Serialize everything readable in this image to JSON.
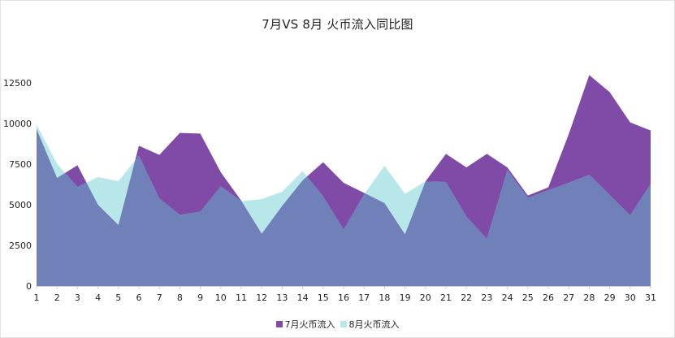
{
  "colors": {
    "july": "#7F4BA6",
    "august": "#B8E7EA",
    "overlap": "#7080B9",
    "axis": "#333333"
  },
  "chart_data": {
    "type": "area",
    "title": "7月VS 8月 火币流入同比图",
    "xlabel": "",
    "ylabel": "",
    "ylim": [
      0,
      15000
    ],
    "yticks": [
      0,
      2500,
      5000,
      7500,
      10000,
      12500
    ],
    "grid": false,
    "legend_position": "bottom",
    "categories": [
      "1",
      "2",
      "3",
      "4",
      "5",
      "6",
      "7",
      "8",
      "9",
      "10",
      "11",
      "12",
      "13",
      "14",
      "15",
      "16",
      "17",
      "18",
      "19",
      "20",
      "21",
      "22",
      "23",
      "24",
      "25",
      "26",
      "27",
      "28",
      "29",
      "30",
      "31"
    ],
    "series": [
      {
        "name": "7月火币流入",
        "values": [
          9650,
          6650,
          7430,
          5000,
          3750,
          8630,
          8070,
          9420,
          9380,
          7000,
          5250,
          3220,
          4930,
          6500,
          7620,
          6350,
          5730,
          5100,
          3180,
          6430,
          8130,
          7300,
          8130,
          7300,
          5570,
          6070,
          9350,
          12980,
          11930,
          10070,
          9570
        ]
      },
      {
        "name": "8月火币流入",
        "values": [
          9930,
          7520,
          6100,
          6700,
          6450,
          8020,
          5380,
          4380,
          4570,
          6130,
          5220,
          5350,
          5800,
          7070,
          5520,
          3470,
          5630,
          7400,
          5680,
          6430,
          6400,
          4270,
          2900,
          7130,
          5430,
          5900,
          6350,
          6850,
          5600,
          4350,
          6270
        ]
      }
    ]
  },
  "legend": {
    "items": [
      {
        "label": "7月火币流入"
      },
      {
        "label": "8月火币流入"
      }
    ]
  }
}
